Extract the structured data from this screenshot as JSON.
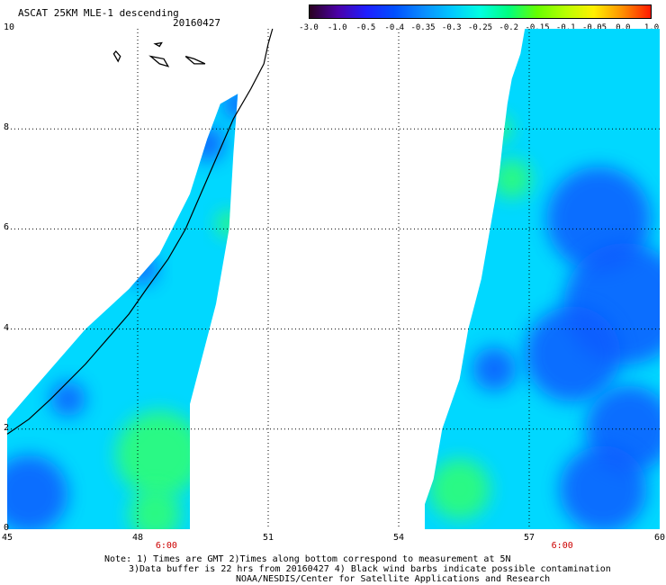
{
  "header": {
    "title": "ASCAT 25KM MLE-1 descending",
    "date": "20160427"
  },
  "colorbar": {
    "ticks": [
      "-3.0",
      "-1.0",
      "-0.5",
      "-0.4",
      "-0.35",
      "-0.3",
      "-0.25",
      "-0.2",
      "-0.15",
      "-0.1",
      "-0.05",
      "0.0",
      "1.0"
    ],
    "colors": [
      "#2a0020",
      "#4b00a8",
      "#1f1fff",
      "#0050ff",
      "#0a8cff",
      "#00c8ff",
      "#00ffe1",
      "#00ff80",
      "#66ff00",
      "#b8ff00",
      "#fff000",
      "#ff9000",
      "#ff1a00"
    ]
  },
  "map": {
    "x_labels": [
      "45",
      "48",
      "51",
      "54",
      "57",
      "60"
    ],
    "y_labels": [
      "0",
      "2",
      "4",
      "6",
      "8",
      "10"
    ],
    "time_labels": [
      "6:00",
      "6:00"
    ],
    "time_positions_lon": [
      48.7,
      57.8
    ],
    "xlim": [
      45,
      60
    ],
    "ylim": [
      0,
      10
    ],
    "grid": true,
    "swath_left_polygon": [
      [
        45,
        2.2
      ],
      [
        45.6,
        2.8
      ],
      [
        46.8,
        4.0
      ],
      [
        47.8,
        4.8
      ],
      [
        48.5,
        5.5
      ],
      [
        49.2,
        6.7
      ],
      [
        49.6,
        7.8
      ],
      [
        49.9,
        8.5
      ],
      [
        50.3,
        8.7
      ],
      [
        50.2,
        7.5
      ],
      [
        50.1,
        6.0
      ],
      [
        49.8,
        4.5
      ],
      [
        49.5,
        3.5
      ],
      [
        49.2,
        2.5
      ],
      [
        49.2,
        0.0
      ],
      [
        45,
        0.0
      ]
    ],
    "swath_right_polygon": [
      [
        56.9,
        10.0
      ],
      [
        56.8,
        9.5
      ],
      [
        56.6,
        9.0
      ],
      [
        56.5,
        8.5
      ],
      [
        56.4,
        7.8
      ],
      [
        56.3,
        7.0
      ],
      [
        56.1,
        6.0
      ],
      [
        55.9,
        5.0
      ],
      [
        55.6,
        4.0
      ],
      [
        55.5,
        3.5
      ],
      [
        55.4,
        3.0
      ],
      [
        55.0,
        2.0
      ],
      [
        54.8,
        1.0
      ],
      [
        54.6,
        0.5
      ],
      [
        54.6,
        0.0
      ],
      [
        60,
        0.0
      ],
      [
        60,
        10.0
      ]
    ],
    "coastline": [
      [
        45.0,
        1.9
      ],
      [
        45.5,
        2.2
      ],
      [
        46.0,
        2.6
      ],
      [
        46.8,
        3.3
      ],
      [
        47.3,
        3.8
      ],
      [
        47.8,
        4.3
      ],
      [
        48.2,
        4.8
      ],
      [
        48.7,
        5.4
      ],
      [
        49.1,
        6.0
      ],
      [
        49.5,
        6.8
      ],
      [
        49.9,
        7.6
      ],
      [
        50.2,
        8.2
      ],
      [
        50.6,
        8.8
      ],
      [
        50.9,
        9.3
      ],
      [
        51.0,
        9.7
      ],
      [
        51.1,
        10.0
      ]
    ],
    "islands": [
      [
        [
          47.45,
          9.5
        ],
        [
          47.55,
          9.35
        ],
        [
          47.6,
          9.45
        ],
        [
          47.5,
          9.55
        ]
      ],
      [
        [
          48.3,
          9.45
        ],
        [
          48.5,
          9.3
        ],
        [
          48.7,
          9.25
        ],
        [
          48.6,
          9.4
        ]
      ],
      [
        [
          49.1,
          9.45
        ],
        [
          49.3,
          9.3
        ],
        [
          49.55,
          9.3
        ],
        [
          49.3,
          9.4
        ]
      ],
      [
        [
          48.4,
          9.7
        ],
        [
          48.5,
          9.65
        ],
        [
          48.55,
          9.72
        ]
      ]
    ],
    "blue_patches": [
      {
        "lon": 45.5,
        "lat": 0.7,
        "r": 0.9
      },
      {
        "lon": 46.4,
        "lat": 2.6,
        "r": 0.4
      },
      {
        "lon": 48.1,
        "lat": 5.2,
        "r": 0.35
      },
      {
        "lon": 49.6,
        "lat": 7.7,
        "r": 0.4
      },
      {
        "lon": 50.3,
        "lat": 8.5,
        "r": 0.35
      },
      {
        "lon": 58.6,
        "lat": 6.2,
        "r": 1.2
      },
      {
        "lon": 59.2,
        "lat": 4.5,
        "r": 1.4
      },
      {
        "lon": 58.0,
        "lat": 3.5,
        "r": 1.1
      },
      {
        "lon": 59.3,
        "lat": 2.0,
        "r": 1.0
      },
      {
        "lon": 56.2,
        "lat": 3.2,
        "r": 0.5
      },
      {
        "lon": 58.7,
        "lat": 0.8,
        "r": 1.0
      }
    ],
    "green_patches": [
      {
        "lon": 48.5,
        "lat": 1.5,
        "r": 1.0
      },
      {
        "lon": 48.4,
        "lat": 0.3,
        "r": 0.6
      },
      {
        "lon": 55.4,
        "lat": 0.8,
        "r": 0.7
      },
      {
        "lon": 56.6,
        "lat": 7.0,
        "r": 0.45
      },
      {
        "lon": 56.3,
        "lat": 8.0,
        "r": 0.3
      },
      {
        "lon": 50.1,
        "lat": 6.1,
        "r": 0.3
      }
    ]
  },
  "notes": [
    "Note: 1) Times are GMT 2)Times along bottom correspond to measurement at 5N",
    "3)Data buffer is 22 hrs from 20160427 4) Black wind barbs indicate possible contamination",
    "NOAA/NESDIS/Center for Satellite Applications and Research"
  ]
}
